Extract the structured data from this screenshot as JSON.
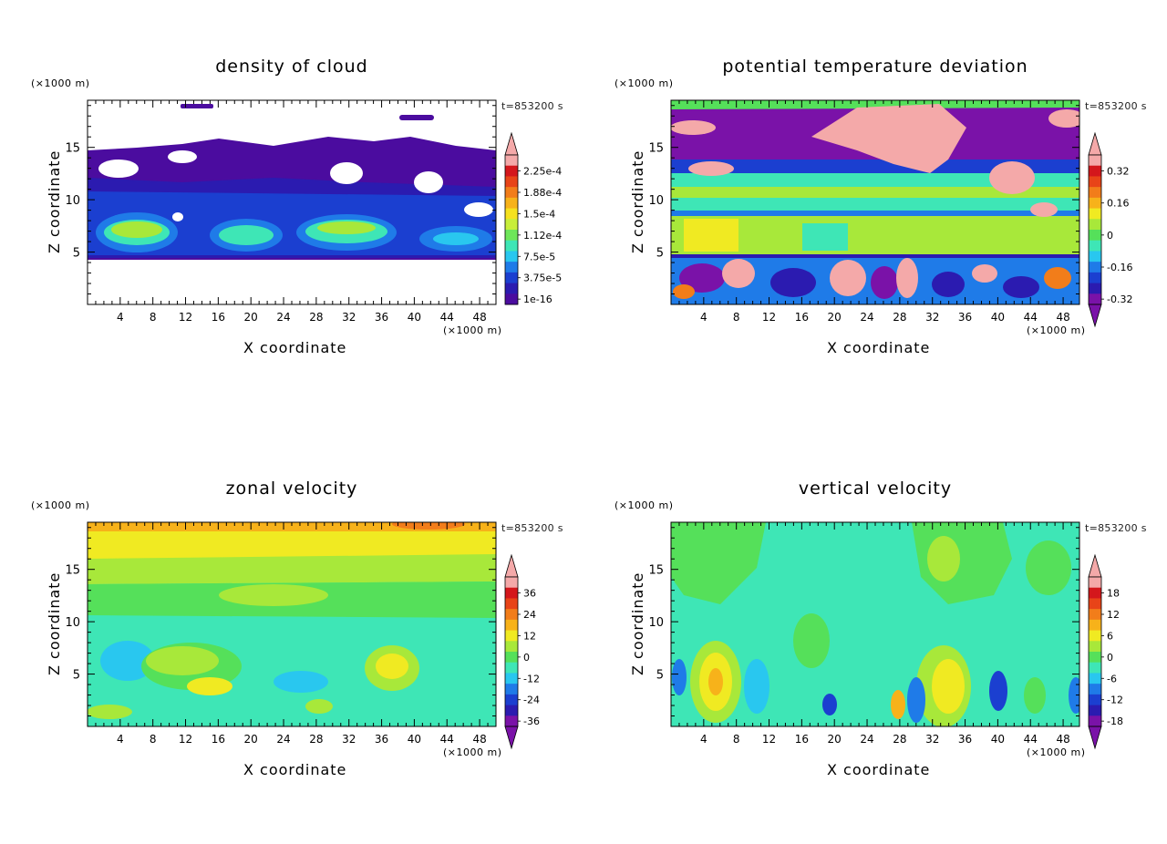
{
  "chart_data": [
    {
      "type": "heatmap",
      "title": "density of cloud",
      "xlabel": "X coordinate",
      "ylabel": "Z coordinate",
      "x_unit": "(×1000 m)",
      "y_unit": "(×1000 m)",
      "time_label": "t=853200 s",
      "x_ticks": [
        "4",
        "8",
        "12",
        "16",
        "20",
        "24",
        "28",
        "32",
        "36",
        "40",
        "44",
        "48"
      ],
      "y_ticks": [
        "5",
        "10",
        "15"
      ],
      "xlim": [
        0,
        50
      ],
      "ylim": [
        0,
        19.5
      ],
      "colorbar_labels": [
        "2.25e-4",
        "1.88e-4",
        "1.5e-4",
        "1.12e-4",
        "7.5e-5",
        "3.75e-5",
        "1e-16"
      ],
      "colorbar_has_top_arrow": true,
      "colorbar_has_bottom_arrow": false,
      "palette": [
        "#4b0c9f",
        "#2b1bb0",
        "#1b3fd0",
        "#1f7be8",
        "#29c7ef",
        "#3ee6b6",
        "#6ee65a",
        "#c8ee3a",
        "#f5e11e",
        "#f7b21a",
        "#f27d1a",
        "#e84418",
        "#d4171c",
        "#f4a9a9"
      ]
    },
    {
      "type": "heatmap",
      "title": "potential temperature deviation",
      "xlabel": "X coordinate",
      "ylabel": "Z coordinate",
      "x_unit": "(×1000 m)",
      "y_unit": "(×1000 m)",
      "time_label": "t=853200 s",
      "x_ticks": [
        "4",
        "8",
        "12",
        "16",
        "20",
        "24",
        "28",
        "32",
        "36",
        "40",
        "44",
        "48"
      ],
      "y_ticks": [
        "5",
        "10",
        "15"
      ],
      "xlim": [
        0,
        50
      ],
      "ylim": [
        0,
        19.5
      ],
      "colorbar_labels": [
        "0.32",
        "0.16",
        "0",
        "-0.16",
        "-0.32"
      ],
      "colorbar_has_top_arrow": true,
      "colorbar_has_bottom_arrow": true,
      "palette": [
        "#7a12a8",
        "#2b1bb0",
        "#1b3fd0",
        "#1f7be8",
        "#29c7ef",
        "#3ee6b6",
        "#55e05a",
        "#a8e83a",
        "#f0ea22",
        "#f7b21a",
        "#f27d1a",
        "#e84418",
        "#d4171c",
        "#f4a9a9"
      ]
    },
    {
      "type": "heatmap",
      "title": "zonal velocity",
      "xlabel": "X coordinate",
      "ylabel": "Z coordinate",
      "x_unit": "(×1000 m)",
      "y_unit": "(×1000 m)",
      "time_label": "t=853200 s",
      "x_ticks": [
        "4",
        "8",
        "12",
        "16",
        "20",
        "24",
        "28",
        "32",
        "36",
        "40",
        "44",
        "48"
      ],
      "y_ticks": [
        "5",
        "10",
        "15"
      ],
      "xlim": [
        0,
        50
      ],
      "ylim": [
        0,
        19.5
      ],
      "colorbar_labels": [
        "36",
        "24",
        "12",
        "0",
        "-12",
        "-24",
        "-36"
      ],
      "colorbar_has_top_arrow": true,
      "colorbar_has_bottom_arrow": true,
      "palette": [
        "#7a12a8",
        "#2b1bb0",
        "#1b3fd0",
        "#1f7be8",
        "#29c7ef",
        "#3ee6b6",
        "#55e05a",
        "#a8e83a",
        "#f0ea22",
        "#f7b21a",
        "#f27d1a",
        "#e84418",
        "#d4171c",
        "#f4a9a9"
      ]
    },
    {
      "type": "heatmap",
      "title": "vertical velocity",
      "xlabel": "X coordinate",
      "ylabel": "Z coordinate",
      "x_unit": "(×1000 m)",
      "y_unit": "(×1000 m)",
      "time_label": "t=853200 s",
      "x_ticks": [
        "4",
        "8",
        "12",
        "16",
        "20",
        "24",
        "28",
        "32",
        "36",
        "40",
        "44",
        "48"
      ],
      "y_ticks": [
        "5",
        "10",
        "15"
      ],
      "xlim": [
        0,
        50
      ],
      "ylim": [
        0,
        19.5
      ],
      "colorbar_labels": [
        "18",
        "12",
        "6",
        "0",
        "-6",
        "-12",
        "-18"
      ],
      "colorbar_has_top_arrow": true,
      "colorbar_has_bottom_arrow": true,
      "palette": [
        "#7a12a8",
        "#2b1bb0",
        "#1b3fd0",
        "#1f7be8",
        "#29c7ef",
        "#3ee6b6",
        "#55e05a",
        "#a8e83a",
        "#f0ea22",
        "#f7b21a",
        "#f27d1a",
        "#e84418",
        "#d4171c",
        "#f4a9a9"
      ]
    }
  ]
}
